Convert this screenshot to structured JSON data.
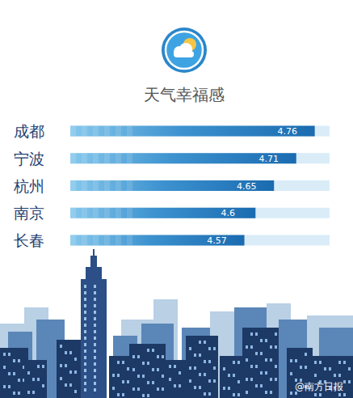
{
  "chart_data": {
    "type": "bar",
    "orientation": "horizontal",
    "title": "天气幸福感",
    "categories": [
      "成都",
      "宁波",
      "杭州",
      "南京",
      "长春"
    ],
    "values": [
      4.76,
      4.71,
      4.65,
      4.6,
      4.57
    ],
    "xlim": [
      4.1,
      4.8
    ],
    "xticks": [],
    "data_labels": true,
    "tick_labels": "y",
    "color": "#1a6bb0",
    "watermark": "@南方日报"
  }
}
